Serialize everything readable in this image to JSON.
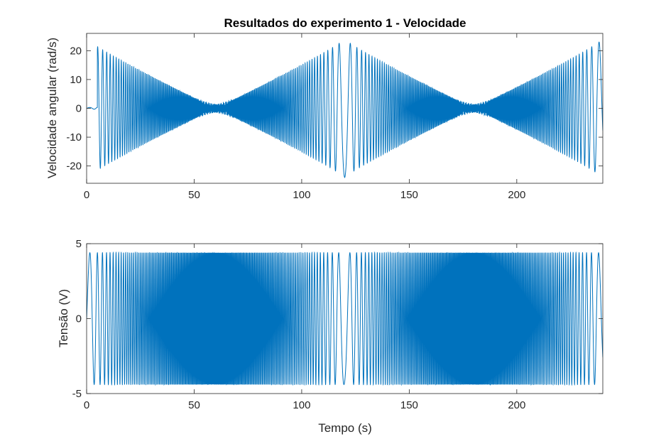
{
  "chart_data": [
    {
      "type": "line",
      "title": "Resultados do experimento 1 - Velocidade",
      "xlabel": "",
      "ylabel": "Velocidade angular (rad/s)",
      "xlim": [
        0,
        240
      ],
      "ylim": [
        -26,
        26
      ],
      "xticks": [
        0,
        50,
        100,
        150,
        200
      ],
      "xtick_labels": [
        "0",
        "50",
        "100",
        "150",
        "200"
      ],
      "yticks": [
        -20,
        -10,
        0,
        10,
        20
      ],
      "ytick_labels": [
        "-20",
        "-10",
        "0",
        "10",
        "20"
      ],
      "grid": false,
      "color": "#0072BD",
      "signal": {
        "description_points": "chirp response: oscillation amplitude ~24 rad/s at low frequency, decaying to ~0 near t=60 s and t=180 s; starts near 0 at t=0..5 s",
        "amplitude_peak": 24,
        "sweep_start_freq_hz": 0.13,
        "sweep_end_freq_hz": 3.0,
        "sweep_period_s": 120,
        "null_times_s": [
          60,
          180
        ]
      }
    },
    {
      "type": "line",
      "title": "",
      "xlabel": "Tempo (s)",
      "ylabel": "Tensão (V)",
      "xlim": [
        0,
        240
      ],
      "ylim": [
        -5,
        5
      ],
      "xticks": [
        0,
        50,
        100,
        150,
        200
      ],
      "xtick_labels": [
        "0",
        "50",
        "100",
        "150",
        "200"
      ],
      "yticks": [
        -5,
        0,
        5
      ],
      "ytick_labels": [
        "-5",
        "0",
        "5"
      ],
      "grid": false,
      "color": "#0072BD",
      "signal": {
        "amplitude": 4.4,
        "sweep_start_freq_hz": 0.13,
        "sweep_end_freq_hz": 3.0,
        "sweep_period_s": 120
      }
    }
  ]
}
